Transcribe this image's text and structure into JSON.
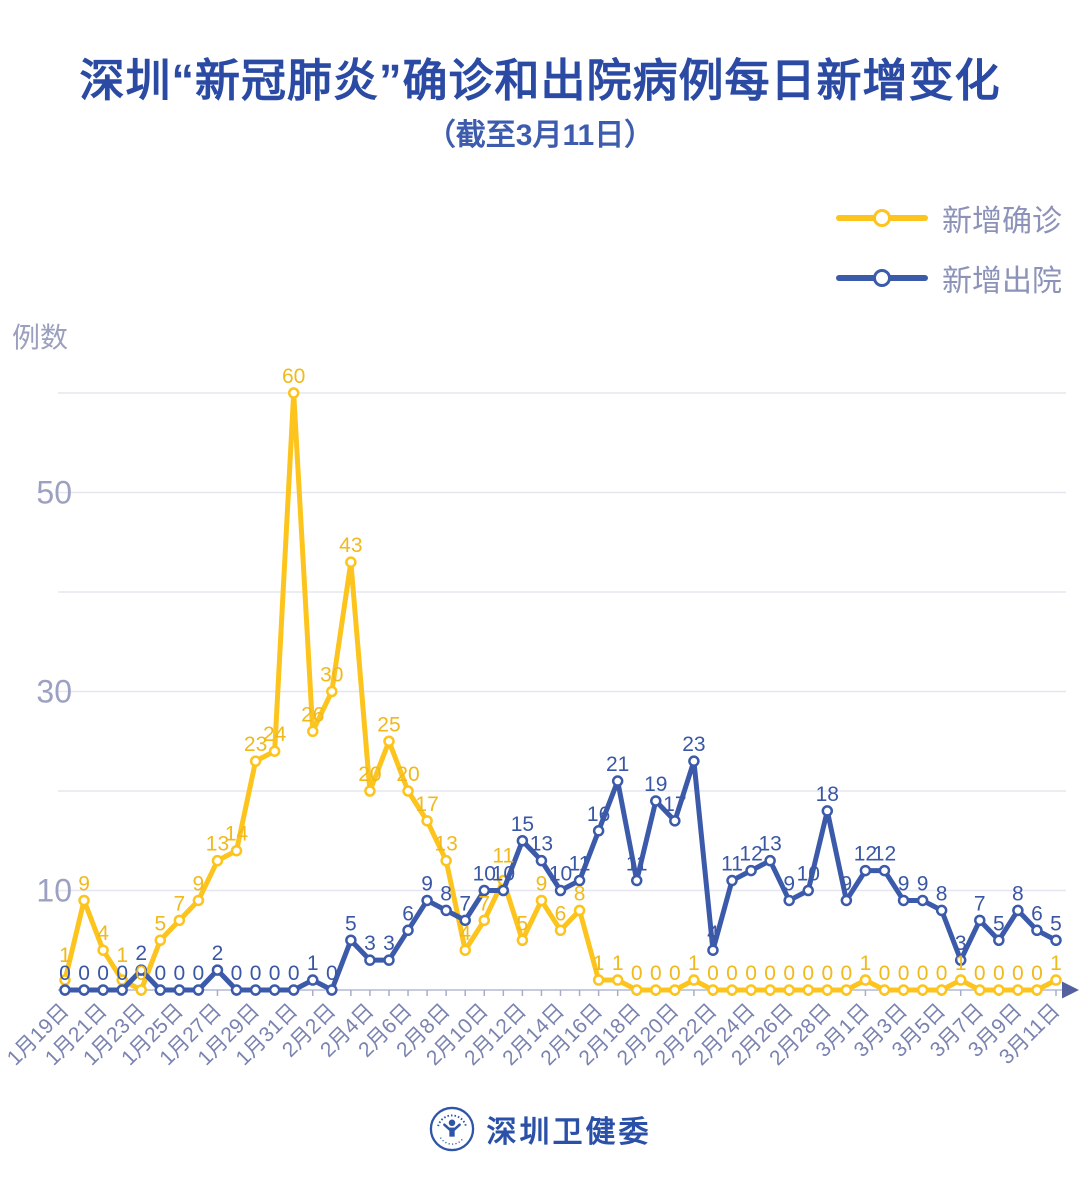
{
  "header": {
    "title": "深圳“新冠肺炎”确诊和出院病例每日新增变化",
    "subtitle": "（截至3月11日）"
  },
  "legend": [
    {
      "label": "新增确诊",
      "color": "#fcc41c"
    },
    {
      "label": "新增出院",
      "color": "#3c5aaa"
    }
  ],
  "chart_data": {
    "type": "line",
    "title": "深圳“新冠肺炎”确诊和出院病例每日新增变化（截至3月11日）",
    "xlabel": "",
    "ylabel": "例数",
    "ylim": [
      0,
      62
    ],
    "yticks_labeled": [
      10,
      30,
      50
    ],
    "gridline_values": [
      10,
      20,
      30,
      40,
      50,
      60
    ],
    "grid": "horizontal",
    "legend_position": "top-right",
    "x_tick_label_every": 2,
    "categories": [
      "1月19日",
      "1月20日",
      "1月21日",
      "1月22日",
      "1月23日",
      "1月24日",
      "1月25日",
      "1月26日",
      "1月27日",
      "1月28日",
      "1月29日",
      "1月30日",
      "1月31日",
      "2月1日",
      "2月2日",
      "2月3日",
      "2月4日",
      "2月5日",
      "2月6日",
      "2月7日",
      "2月8日",
      "2月9日",
      "2月10日",
      "2月11日",
      "2月12日",
      "2月13日",
      "2月14日",
      "2月15日",
      "2月16日",
      "2月17日",
      "2月18日",
      "2月19日",
      "2月20日",
      "2月21日",
      "2月22日",
      "2月23日",
      "2月24日",
      "2月25日",
      "2月26日",
      "2月27日",
      "2月28日",
      "2月29日",
      "3月1日",
      "3月2日",
      "3月3日",
      "3月4日",
      "3月5日",
      "3月6日",
      "3月7日",
      "3月8日",
      "3月9日",
      "3月10日",
      "3月11日"
    ],
    "series": [
      {
        "name": "新增确诊",
        "color": "#fcc41c",
        "label_color": "#f0b91c",
        "values": [
          1,
          9,
          4,
          1,
          0,
          5,
          7,
          9,
          13,
          14,
          23,
          24,
          60,
          26,
          30,
          43,
          20,
          25,
          20,
          17,
          13,
          4,
          7,
          11,
          5,
          9,
          6,
          8,
          1,
          1,
          0,
          0,
          0,
          1,
          0,
          0,
          0,
          0,
          0,
          0,
          0,
          0,
          1,
          0,
          0,
          0,
          0,
          1,
          0,
          0,
          0,
          0,
          1
        ]
      },
      {
        "name": "新增出院",
        "color": "#3c5aaa",
        "label_color": "#3a57a5",
        "values": [
          0,
          0,
          0,
          0,
          2,
          0,
          0,
          0,
          2,
          0,
          0,
          0,
          0,
          1,
          0,
          5,
          3,
          3,
          6,
          9,
          8,
          7,
          10,
          10,
          15,
          13,
          10,
          11,
          16,
          21,
          11,
          19,
          17,
          23,
          4,
          11,
          12,
          13,
          9,
          10,
          18,
          9,
          12,
          12,
          9,
          9,
          8,
          3,
          7,
          5,
          8,
          6,
          5
        ]
      }
    ]
  },
  "axis_style": {
    "grid_color": "#e5e6ef",
    "axis_color": "#c7cbdf",
    "tick_color": "#a9adc9",
    "arrow_color": "#53629f",
    "ytick_color": "#9ca1c1",
    "xtick_color": "#7a82b0"
  },
  "footer": {
    "brand": "深圳卫健委"
  }
}
